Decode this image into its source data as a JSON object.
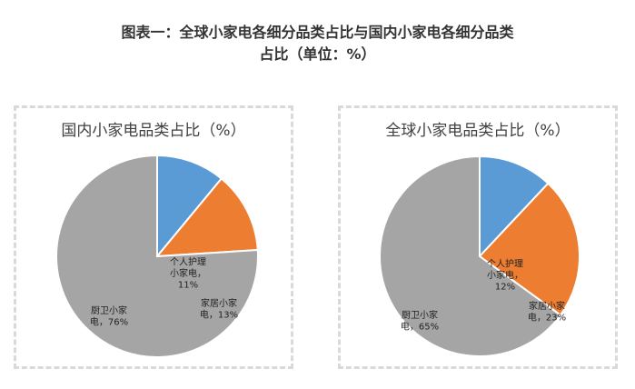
{
  "title": {
    "line1": "图表一：全球小家电各细分品类占比与国内小家电各细分品类",
    "line2": "占比（单位：%）"
  },
  "chart_data": [
    {
      "type": "pie",
      "title": "国内小家电品类占比（%）",
      "slices": [
        {
          "label_lines": [
            "个人护理",
            "小家电，",
            "11%"
          ],
          "value": 11,
          "color": "#5b9bd5",
          "text_color": "#222222"
        },
        {
          "label_lines": [
            "家居小家",
            "电，13%"
          ],
          "value": 13,
          "color": "#ed7d31",
          "text_color": "#222222"
        },
        {
          "label_lines": [
            "厨卫小家",
            "电，76%"
          ],
          "value": 76,
          "color": "#a5a5a5",
          "text_color": "#222222"
        }
      ]
    },
    {
      "type": "pie",
      "title": "全球小家电品类占比（%）",
      "slices": [
        {
          "label_lines": [
            "个人护理",
            "小家电，",
            "12%"
          ],
          "value": 12,
          "color": "#5b9bd5",
          "text_color": "#222222"
        },
        {
          "label_lines": [
            "家居小家",
            "电，23%"
          ],
          "value": 23,
          "color": "#ed7d31",
          "text_color": "#222222"
        },
        {
          "label_lines": [
            "厨卫小家",
            "电，65%"
          ],
          "value": 65,
          "color": "#a5a5a5",
          "text_color": "#222222"
        }
      ]
    }
  ]
}
